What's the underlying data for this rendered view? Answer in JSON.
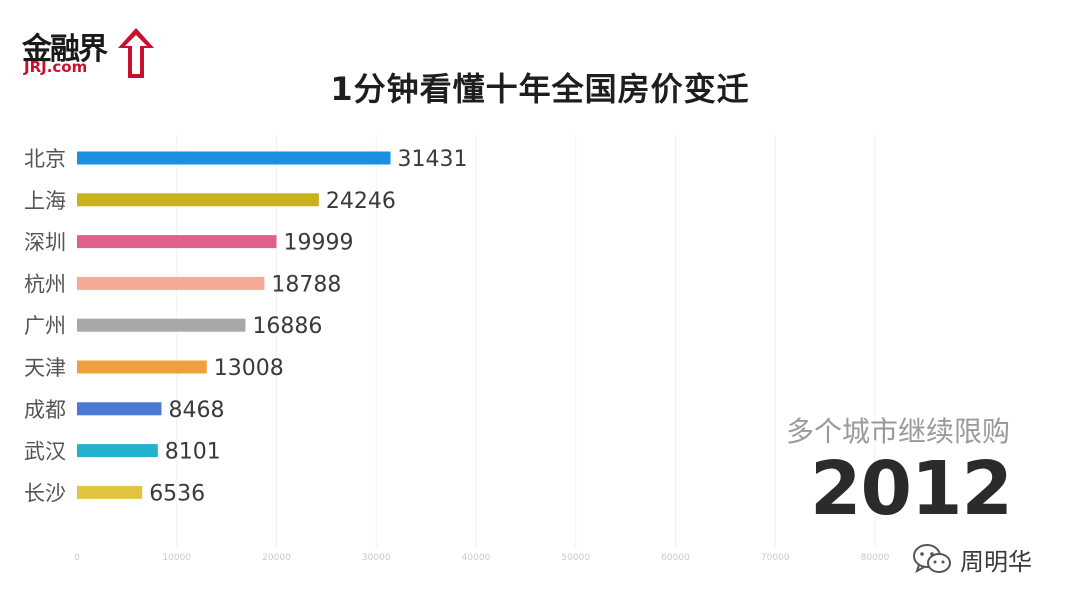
{
  "logo": {
    "cn": "金融界",
    "en": "JRJ.com"
  },
  "title": "1分钟看懂十年全国房价变迁",
  "subtitle": "多个城市继续限购",
  "year": "2012",
  "watermark": {
    "icon": "wechat-icon",
    "text": "周明华"
  },
  "chart_data": {
    "type": "bar",
    "orientation": "horizontal",
    "categories": [
      "北京",
      "上海",
      "深圳",
      "杭州",
      "广州",
      "天津",
      "成都",
      "武汉",
      "长沙"
    ],
    "values": [
      31431,
      24246,
      19999,
      18788,
      16886,
      13008,
      8468,
      8101,
      6536
    ],
    "colors": [
      "#1b8fe0",
      "#c9b21a",
      "#e0608a",
      "#f6a998",
      "#a8a8a8",
      "#f0a03a",
      "#4a77d8",
      "#23b2cc",
      "#e3c440"
    ],
    "xticks": [
      0,
      10000,
      20000,
      30000,
      40000,
      50000,
      60000,
      70000,
      80000
    ],
    "xlim": [
      0,
      80000
    ],
    "grid": true,
    "legend": "none"
  }
}
